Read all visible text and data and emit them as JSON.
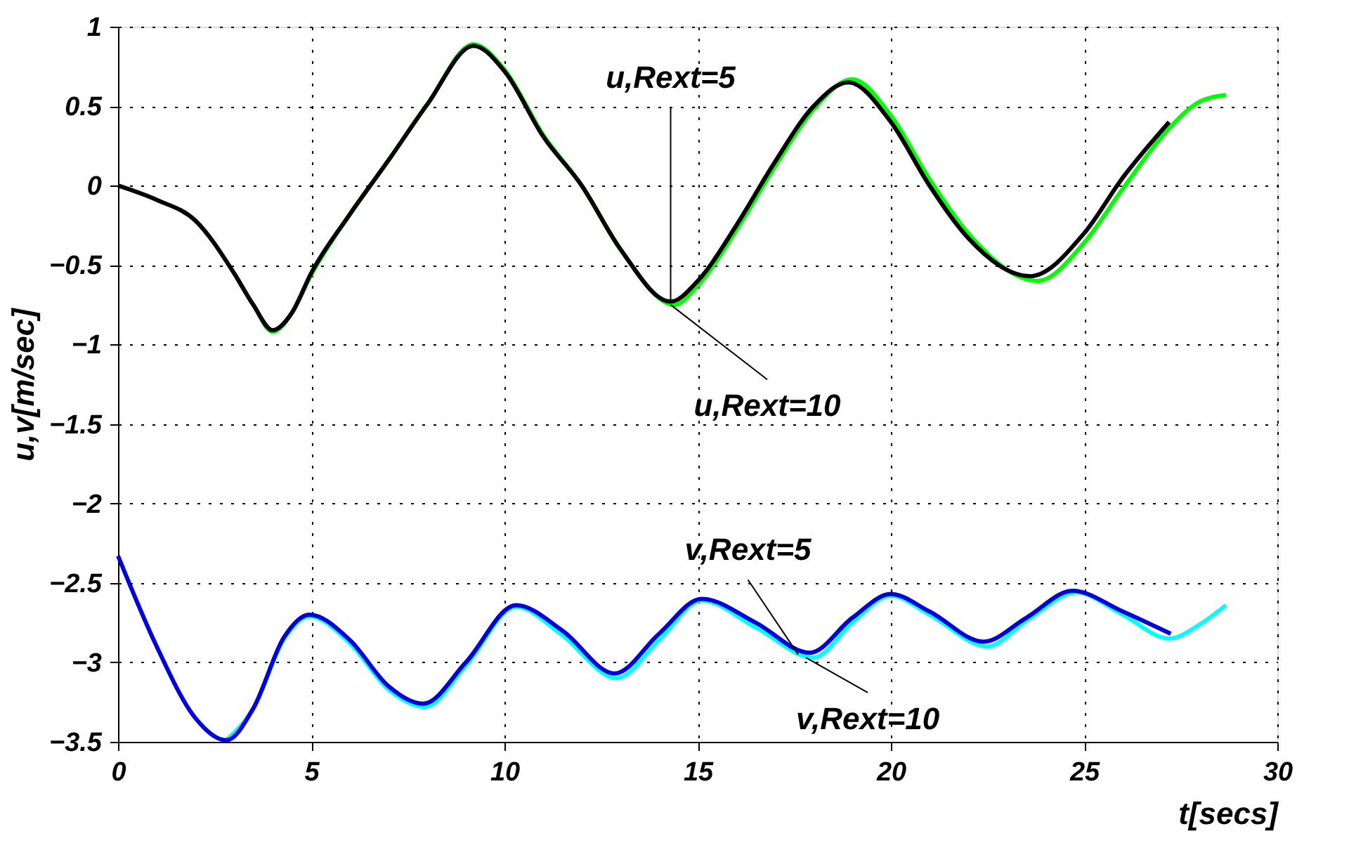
{
  "chart_data": {
    "type": "line",
    "xlabel": "t[secs]",
    "ylabel": "u,v[m/sec]",
    "xlim": [
      0,
      30
    ],
    "xticks": [
      0,
      5,
      10,
      15,
      20,
      25,
      30
    ],
    "ylim": [
      -3.5,
      1
    ],
    "yticks": [
      -3.5,
      -3,
      -2.5,
      -2,
      -1.5,
      -1,
      -0.5,
      0,
      0.5,
      1
    ],
    "grid": true,
    "marker": "none",
    "line_style": "solid",
    "series": [
      {
        "color": "#00ff00",
        "x": [
          3,
          3.5,
          4.0,
          4.5,
          5,
          6,
          7,
          8,
          9.2,
          10,
          11,
          12,
          13,
          14.4,
          15,
          16,
          17,
          18,
          19.0,
          20,
          21,
          22,
          23.8,
          25,
          26,
          27.2,
          28,
          28.67
        ],
        "values": [
          -0.55,
          -0.75,
          -0.92,
          -0.8,
          -0.56,
          -0.18,
          0.16,
          0.51,
          0.89,
          0.73,
          0.32,
          0.0,
          -0.4,
          -0.75,
          -0.63,
          -0.28,
          0.12,
          0.48,
          0.67,
          0.44,
          0.04,
          -0.3,
          -0.6,
          -0.36,
          -0.02,
          0.36,
          0.53,
          0.57
        ]
      },
      {
        "color": "#000000",
        "x": [
          0,
          1,
          2,
          3,
          3.5,
          4.0,
          4.5,
          5,
          6,
          7,
          8,
          9.2,
          10,
          11,
          12,
          13,
          14.3,
          15,
          16,
          17,
          18,
          18.9,
          20,
          21,
          22,
          23.6,
          25,
          26,
          27.2
        ],
        "values": [
          0,
          -0.09,
          -0.22,
          -0.55,
          -0.75,
          -0.91,
          -0.8,
          -0.55,
          -0.18,
          0.16,
          0.51,
          0.88,
          0.72,
          0.31,
          0.0,
          -0.4,
          -0.73,
          -0.6,
          -0.25,
          0.15,
          0.5,
          0.65,
          0.4,
          0.0,
          -0.33,
          -0.57,
          -0.3,
          0.05,
          0.4
        ]
      },
      {
        "color": "#00ffff",
        "x": [
          2.8,
          3.5,
          4.3,
          4.95,
          6,
          7,
          7.95,
          9,
          10.3,
          11.5,
          12.9,
          14,
          15.1,
          16.5,
          18.0,
          19,
          20,
          21,
          22.5,
          23.5,
          24.8,
          26,
          27.2,
          28,
          28.67
        ],
        "values": [
          -3.49,
          -3.29,
          -2.85,
          -2.71,
          -2.88,
          -3.17,
          -3.28,
          -3.02,
          -2.65,
          -2.83,
          -3.1,
          -2.86,
          -2.61,
          -2.78,
          -2.97,
          -2.75,
          -2.58,
          -2.7,
          -2.9,
          -2.74,
          -2.56,
          -2.7,
          -2.85,
          -2.76,
          -2.64
        ]
      },
      {
        "color": "#0000dd",
        "x": [
          0,
          1,
          2,
          2.8,
          3.5,
          4.3,
          4.95,
          6,
          7,
          7.9,
          9,
          10.3,
          11.5,
          12.85,
          14,
          15.1,
          16.5,
          17.9,
          19,
          20,
          21,
          22.4,
          23.5,
          24.7,
          26,
          27.24
        ],
        "values": [
          -2.33,
          -2.9,
          -3.35,
          -3.49,
          -3.29,
          -2.84,
          -2.7,
          -2.86,
          -3.15,
          -3.26,
          -3.0,
          -2.64,
          -2.8,
          -3.07,
          -2.82,
          -2.6,
          -2.75,
          -2.94,
          -2.72,
          -2.57,
          -2.68,
          -2.87,
          -2.72,
          -2.55,
          -2.68,
          -2.82
        ]
      }
    ],
    "annotations": [
      {
        "text": "u,Rext=5",
        "x": 14.3,
        "y": -0.73
      },
      {
        "text": "u,Rext=10",
        "x": 14.3,
        "y": -0.75
      },
      {
        "text": "v,Rext=5",
        "x": 17.6,
        "y": -2.95
      },
      {
        "text": "v,Rext=10",
        "x": 17.8,
        "y": -2.97
      }
    ]
  }
}
